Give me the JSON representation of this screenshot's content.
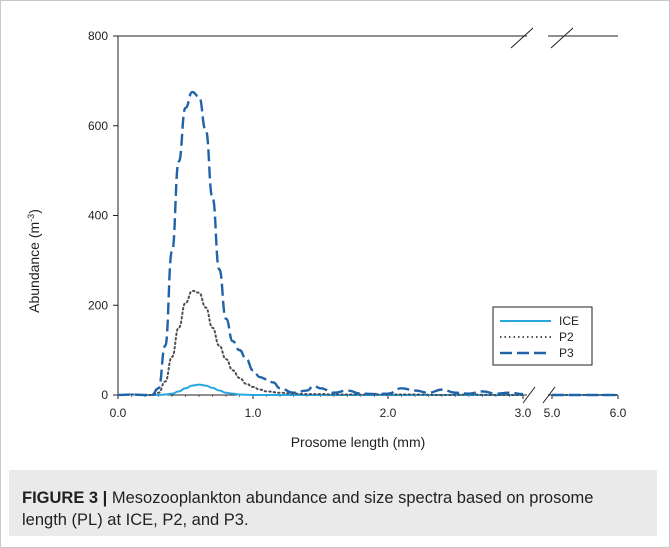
{
  "caption": {
    "label": "FIGURE 3 |",
    "text": "Mesozooplankton abundance and size spectra based on prosome length (PL) at ICE, P2, and P3."
  },
  "colors": {
    "ICE": "#2aa7df",
    "P2": "#4d4d5a",
    "P3": "#1f63a8",
    "axis": "#231f20"
  },
  "chart_data": {
    "type": "line",
    "xlabel": "Prosome length (mm)",
    "ylabel": "Abundance (m",
    "ylabel_sup": "-3",
    "ylabel_end": ")",
    "ylim": [
      0,
      800
    ],
    "yticks": [
      0,
      200,
      400,
      600,
      800
    ],
    "x_segments": [
      {
        "range": [
          0,
          3.0
        ],
        "ticks": [
          "0.0",
          "1.0",
          "2.0",
          "3.0"
        ],
        "tick_values": [
          0,
          1,
          2,
          3
        ]
      },
      {
        "range": [
          5.0,
          6.0
        ],
        "ticks": [
          "5.0",
          "6.0"
        ],
        "tick_values": [
          5,
          6
        ]
      }
    ],
    "axis_break": true,
    "legend_position": "right",
    "series": [
      {
        "name": "ICE",
        "style": "solid",
        "x": [
          0.0,
          0.1,
          0.2,
          0.3,
          0.35,
          0.4,
          0.45,
          0.5,
          0.55,
          0.6,
          0.65,
          0.7,
          0.75,
          0.8,
          0.85,
          0.9,
          1.0,
          1.2,
          1.5,
          2.0,
          2.5,
          3.0,
          5.0,
          5.5,
          6.0
        ],
        "y": [
          0,
          1,
          0,
          0,
          1,
          3,
          8,
          15,
          21,
          23,
          21,
          16,
          10,
          5,
          3,
          1,
          0,
          0,
          0,
          0,
          0,
          0,
          0,
          0,
          0
        ]
      },
      {
        "name": "P2",
        "style": "dotted",
        "x": [
          0.0,
          0.1,
          0.2,
          0.25,
          0.3,
          0.35,
          0.4,
          0.45,
          0.5,
          0.55,
          0.6,
          0.65,
          0.7,
          0.75,
          0.8,
          0.85,
          0.9,
          0.95,
          1.0,
          1.05,
          1.1,
          1.2,
          1.3,
          1.4,
          1.5,
          1.6,
          1.8,
          2.0,
          2.2,
          2.4,
          2.6,
          2.8,
          3.0,
          5.0,
          5.5,
          6.0
        ],
        "y": [
          0,
          1,
          0,
          0,
          5,
          30,
          85,
          150,
          205,
          232,
          228,
          195,
          150,
          110,
          80,
          55,
          38,
          25,
          18,
          12,
          8,
          5,
          3,
          2,
          2,
          1,
          1,
          1,
          1,
          0,
          1,
          0,
          0,
          0,
          0,
          0
        ]
      },
      {
        "name": "P3",
        "style": "dashed",
        "x": [
          0.0,
          0.1,
          0.2,
          0.25,
          0.3,
          0.35,
          0.4,
          0.45,
          0.5,
          0.55,
          0.6,
          0.65,
          0.7,
          0.75,
          0.8,
          0.85,
          0.9,
          0.95,
          1.0,
          1.05,
          1.1,
          1.15,
          1.2,
          1.3,
          1.4,
          1.45,
          1.5,
          1.6,
          1.7,
          1.8,
          1.9,
          2.0,
          2.1,
          2.2,
          2.3,
          2.4,
          2.5,
          2.6,
          2.7,
          2.8,
          2.9,
          3.0,
          5.0,
          5.5,
          6.0
        ],
        "y": [
          0,
          1,
          0,
          0,
          15,
          110,
          320,
          520,
          640,
          675,
          665,
          590,
          440,
          280,
          170,
          120,
          100,
          80,
          55,
          40,
          35,
          28,
          15,
          5,
          10,
          20,
          15,
          5,
          10,
          3,
          2,
          3,
          15,
          10,
          5,
          12,
          5,
          3,
          8,
          3,
          5,
          2,
          0,
          0,
          0
        ]
      }
    ]
  }
}
